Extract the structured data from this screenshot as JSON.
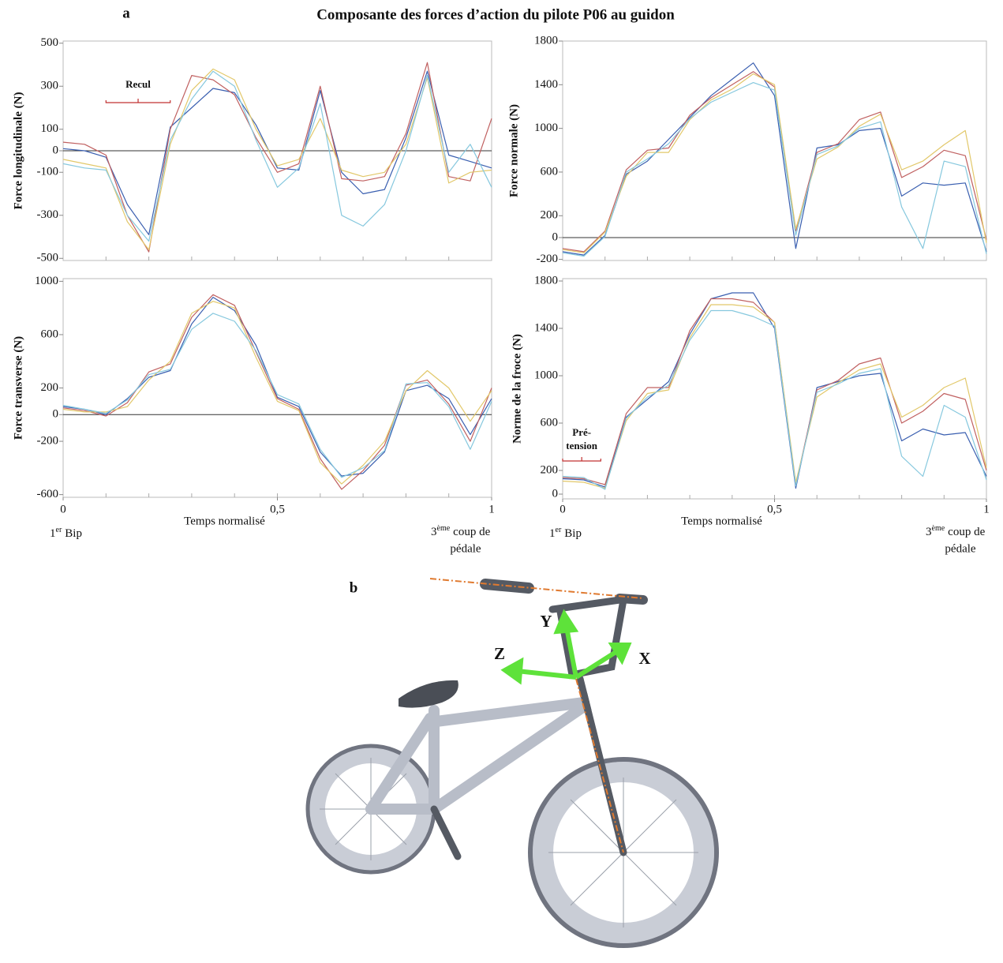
{
  "title": "Composante des forces d’action du pilote P06 au guidon",
  "panel_a": "a",
  "chart_data": [
    {
      "type": "line",
      "ylabel": "Force longitudinale (N)",
      "x": [
        0,
        0.05,
        0.1,
        0.15,
        0.2,
        0.25,
        0.3,
        0.35,
        0.4,
        0.45,
        0.5,
        0.55,
        0.6,
        0.65,
        0.7,
        0.75,
        0.8,
        0.85,
        0.9,
        0.95,
        1
      ],
      "xlim": [
        0,
        1
      ],
      "ylim": [
        -510,
        510
      ],
      "yticks": [
        500,
        300,
        100,
        0,
        -100,
        -300,
        -500
      ],
      "zero_line": true,
      "annotation": {
        "text": [
          "Recul"
        ]
      },
      "series": [
        {
          "color": "#3a5fb0",
          "values": [
            10,
            0,
            -30,
            -250,
            -390,
            110,
            200,
            290,
            270,
            120,
            -80,
            -90,
            280,
            -100,
            -200,
            -180,
            60,
            370,
            -20,
            -50,
            -80
          ]
        },
        {
          "color": "#c06060",
          "values": [
            40,
            30,
            -20,
            -300,
            -470,
            100,
            350,
            330,
            260,
            60,
            -100,
            -60,
            300,
            -130,
            -140,
            -120,
            80,
            410,
            -120,
            -140,
            150
          ]
        },
        {
          "color": "#e2c86a",
          "values": [
            -40,
            -60,
            -80,
            -330,
            -460,
            30,
            280,
            380,
            330,
            100,
            -70,
            -40,
            150,
            -90,
            -120,
            -100,
            30,
            340,
            -150,
            -100,
            -90
          ]
        },
        {
          "color": "#86c8de",
          "values": [
            -60,
            -80,
            -90,
            -300,
            -420,
            50,
            240,
            370,
            300,
            50,
            -170,
            -80,
            220,
            -300,
            -350,
            -250,
            0,
            350,
            -100,
            30,
            -170
          ]
        }
      ]
    },
    {
      "type": "line",
      "ylabel": "Force normale (N)",
      "x": [
        0,
        0.05,
        0.1,
        0.15,
        0.2,
        0.25,
        0.3,
        0.35,
        0.4,
        0.45,
        0.5,
        0.55,
        0.6,
        0.65,
        0.7,
        0.75,
        0.8,
        0.85,
        0.9,
        0.95,
        1
      ],
      "xlim": [
        0,
        1
      ],
      "ylim": [
        -210,
        1800
      ],
      "yticks": [
        1800,
        1400,
        1000,
        600,
        200,
        0,
        -200
      ],
      "zero_line": true,
      "series": [
        {
          "color": "#3a5fb0",
          "values": [
            -130,
            -160,
            20,
            580,
            700,
            900,
            1100,
            1300,
            1450,
            1600,
            1300,
            -100,
            820,
            850,
            980,
            1000,
            380,
            500,
            480,
            500,
            -130
          ]
        },
        {
          "color": "#c06060",
          "values": [
            -100,
            -130,
            60,
            620,
            800,
            820,
            1120,
            1280,
            1400,
            1520,
            1380,
            60,
            780,
            860,
            1080,
            1150,
            550,
            650,
            800,
            750,
            -20
          ]
        },
        {
          "color": "#e2c86a",
          "values": [
            -110,
            -140,
            50,
            560,
            780,
            780,
            1080,
            1260,
            1360,
            1500,
            1400,
            80,
            720,
            830,
            1020,
            1130,
            620,
            700,
            850,
            980,
            -50
          ]
        },
        {
          "color": "#86c8de",
          "values": [
            -140,
            -170,
            10,
            600,
            720,
            860,
            1090,
            1240,
            1330,
            1420,
            1350,
            20,
            760,
            840,
            1000,
            1060,
            280,
            -100,
            700,
            650,
            -150
          ]
        }
      ]
    },
    {
      "type": "line",
      "ylabel": "Force transverse (N)",
      "x": [
        0,
        0.05,
        0.1,
        0.15,
        0.2,
        0.25,
        0.3,
        0.35,
        0.4,
        0.45,
        0.5,
        0.55,
        0.6,
        0.65,
        0.7,
        0.75,
        0.8,
        0.85,
        0.9,
        0.95,
        1
      ],
      "xlim": [
        0,
        1
      ],
      "ylim": [
        -620,
        1020
      ],
      "yticks": [
        1000,
        600,
        200,
        0,
        -200,
        -600
      ],
      "zero_line": true,
      "xticks": [
        0,
        {
          "value": 0.5,
          "label": "0,5"
        },
        1
      ],
      "xlabel": "Temps normalisé",
      "start_label": [
        "1",
        "er",
        "Bip"
      ],
      "end_label": [
        "3",
        "ème",
        "coup de",
        "pédale"
      ],
      "series": [
        {
          "color": "#3a5fb0",
          "values": [
            60,
            40,
            0,
            120,
            280,
            330,
            680,
            880,
            780,
            520,
            130,
            60,
            -280,
            -460,
            -440,
            -280,
            180,
            220,
            120,
            -150,
            120
          ]
        },
        {
          "color": "#c06060",
          "values": [
            50,
            30,
            -10,
            90,
            320,
            380,
            730,
            900,
            820,
            470,
            120,
            40,
            -330,
            -560,
            -420,
            -230,
            220,
            260,
            80,
            -200,
            200
          ]
        },
        {
          "color": "#e2c86a",
          "values": [
            40,
            20,
            20,
            60,
            260,
            400,
            760,
            850,
            800,
            430,
            100,
            30,
            -360,
            -520,
            -380,
            -200,
            180,
            330,
            200,
            -50,
            180
          ]
        },
        {
          "color": "#86c8de",
          "values": [
            70,
            40,
            10,
            110,
            300,
            340,
            640,
            760,
            700,
            480,
            150,
            80,
            -260,
            -470,
            -400,
            -270,
            230,
            240,
            60,
            -260,
            100
          ]
        }
      ]
    },
    {
      "type": "line",
      "ylabel": "Norme de la froce (N)",
      "x": [
        0,
        0.05,
        0.1,
        0.15,
        0.2,
        0.25,
        0.3,
        0.35,
        0.4,
        0.45,
        0.5,
        0.55,
        0.6,
        0.65,
        0.7,
        0.75,
        0.8,
        0.85,
        0.9,
        0.95,
        1
      ],
      "xlim": [
        0,
        1
      ],
      "ylim": [
        -40,
        1820
      ],
      "yticks": [
        1800,
        1400,
        1000,
        600,
        200,
        0
      ],
      "zero_line": false,
      "xticks": [
        0,
        {
          "value": 0.5,
          "label": "0,5"
        },
        1
      ],
      "xlabel": "Temps normalisé",
      "start_label": [
        "1",
        "er",
        "Bip"
      ],
      "end_label": [
        "3",
        "ème",
        "coup de",
        "pédale"
      ],
      "annotation": {
        "text": [
          "Pré-",
          "tension"
        ]
      },
      "series": [
        {
          "color": "#3a5fb0",
          "values": [
            130,
            120,
            60,
            650,
            800,
            950,
            1350,
            1650,
            1700,
            1700,
            1400,
            50,
            900,
            950,
            1000,
            1020,
            450,
            550,
            500,
            520,
            150
          ]
        },
        {
          "color": "#c06060",
          "values": [
            140,
            130,
            80,
            680,
            900,
            900,
            1380,
            1650,
            1650,
            1620,
            1450,
            80,
            880,
            960,
            1100,
            1150,
            600,
            700,
            850,
            800,
            200
          ]
        },
        {
          "color": "#e2c86a",
          "values": [
            110,
            100,
            50,
            620,
            850,
            880,
            1320,
            1600,
            1600,
            1580,
            1450,
            100,
            820,
            940,
            1050,
            1100,
            650,
            750,
            900,
            980,
            220
          ]
        },
        {
          "color": "#86c8de",
          "values": [
            150,
            140,
            40,
            640,
            820,
            920,
            1300,
            1550,
            1550,
            1500,
            1420,
            70,
            860,
            930,
            1020,
            1060,
            320,
            150,
            750,
            650,
            120
          ]
        }
      ]
    }
  ],
  "panel_b": {
    "label": "b",
    "axes": {
      "x": "X",
      "y": "Y",
      "z": "Z"
    }
  }
}
